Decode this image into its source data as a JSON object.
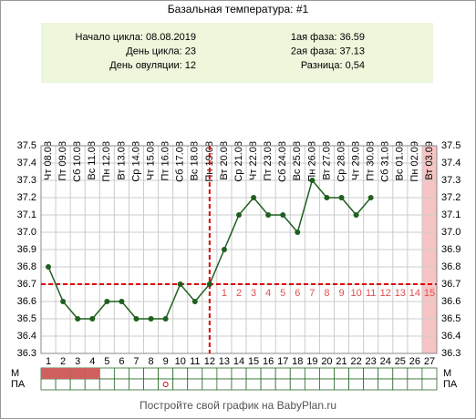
{
  "chart_data": {
    "type": "line",
    "title": "Базальная температура: #1",
    "info": {
      "left": [
        "Начало цикла: 08.08.2019",
        "День цикла: 23",
        "День овуляции: 12"
      ],
      "right": [
        "1ая фаза: 36.59",
        "2ая фаза: 37.13",
        "Разница: 0,54"
      ]
    },
    "x": [
      1,
      2,
      3,
      4,
      5,
      6,
      7,
      8,
      9,
      10,
      11,
      12,
      13,
      14,
      15,
      16,
      17,
      18,
      19,
      20,
      21,
      22,
      23,
      24,
      25,
      26,
      27
    ],
    "date_labels": [
      "Чт 08.08",
      "Пт 09.08",
      "Сб 10.08",
      "Вс 11.08",
      "Пн 12.08",
      "Вт 13.08",
      "Ср 14.08",
      "Чт 15.08",
      "Пт 16.08",
      "Сб 17.08",
      "Вс 18.08",
      "Пн 19.08",
      "Вт 20.08",
      "Ср 21.08",
      "Чт 22.08",
      "Пт 23.08",
      "Сб 24.08",
      "Вс 25.08",
      "Пн 26.08",
      "Вт 27.08",
      "Ср 28.08",
      "Чт 29.08",
      "Пт 30.08",
      "Сб 31.08",
      "Вс 01.09",
      "Пн 02.09",
      "Вт 03.09"
    ],
    "series": [
      {
        "color": "#1f5f1f",
        "values": [
          36.8,
          36.6,
          36.5,
          36.5,
          36.6,
          36.6,
          36.5,
          36.5,
          36.5,
          36.7,
          36.6,
          36.7,
          36.9,
          37.1,
          37.2,
          37.1,
          37.1,
          37.0,
          37.3,
          37.2,
          37.2,
          37.1,
          37.2,
          null,
          null,
          null,
          null
        ]
      }
    ],
    "ylim": [
      36.3,
      37.5
    ],
    "yticks": [
      36.3,
      36.4,
      36.5,
      36.6,
      36.7,
      36.8,
      36.9,
      {
        "value": 37,
        "label": "37.0"
      },
      37.1,
      37.2,
      37.3,
      37.4,
      37.5
    ],
    "grid": true,
    "coverline": 36.7,
    "ovulation_day": 12,
    "luteal_labels": [
      1,
      2,
      3,
      4,
      5,
      6,
      7,
      8,
      9,
      10,
      11,
      12,
      13,
      14,
      15
    ],
    "highlight_day": 27,
    "row_labels": [
      "М",
      "ПА"
    ],
    "m_days": [
      1,
      2,
      3,
      4
    ],
    "pa_days": [
      9
    ],
    "footer": "Постройте свой график на BabyPlan.ru"
  }
}
